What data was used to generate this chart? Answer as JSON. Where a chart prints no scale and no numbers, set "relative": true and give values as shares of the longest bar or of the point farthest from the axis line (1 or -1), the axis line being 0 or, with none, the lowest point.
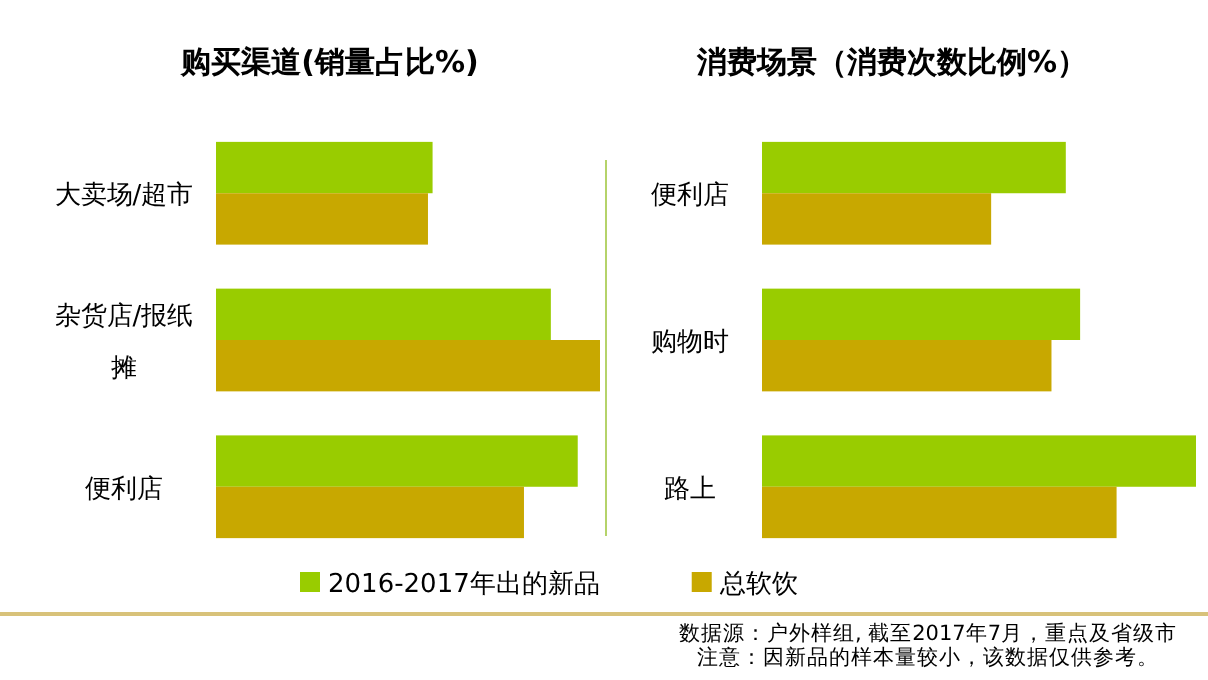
{
  "chart_data": [
    {
      "type": "bar",
      "orientation": "horizontal",
      "relative": true,
      "title": "购买渠道(销量占比%)",
      "categories": [
        "大卖场/超市",
        "杂货店/报纸摊",
        "便利店"
      ],
      "series": [
        {
          "name": "2016-2017年出的新品",
          "color": "#99cc00",
          "values": [
            0.564,
            0.872,
            0.942
          ]
        },
        {
          "name": "总软饮",
          "color": "#c8a800",
          "values": [
            0.552,
            1,
            0.802
          ]
        }
      ],
      "legend": "bottom"
    },
    {
      "type": "bar",
      "orientation": "horizontal",
      "relative": true,
      "title": "消费场景（消费次数比例%）",
      "categories": [
        "便利店",
        "购物时",
        "路上"
      ],
      "series": [
        {
          "color": "#99cc00",
          "values": [
            0.7,
            0.733,
            1
          ]
        },
        {
          "color": "#c8a800",
          "values": [
            0.528,
            0.667,
            0.817
          ]
        }
      ],
      "annotations": [
        "数据源：户外样组, 截至2017年7月，重点及省级市",
        "注意：因新品的样本量较小，该数据仅供参考。"
      ]
    }
  ]
}
